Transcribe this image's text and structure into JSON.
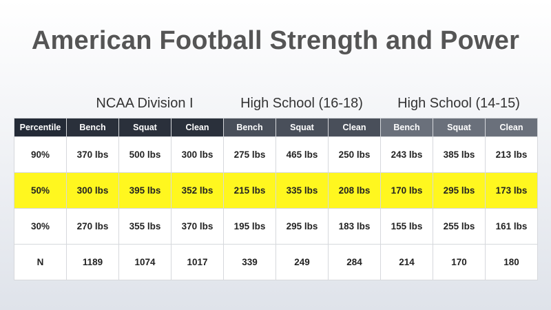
{
  "slide": {
    "title": "American Football Strength and Power"
  },
  "groups": [
    "NCAA Division I",
    "High School (16-18)",
    "High School (14-15)"
  ],
  "table": {
    "headers": [
      "Percentile",
      "Bench",
      "Squat",
      "Clean",
      "Bench",
      "Squat",
      "Clean",
      "Bench",
      "Squat",
      "Clean"
    ],
    "rows": [
      [
        "90%",
        "370 lbs",
        "500 lbs",
        "300 lbs",
        "275 lbs",
        "465 lbs",
        "250 lbs",
        "243 lbs",
        "385 lbs",
        "213 lbs"
      ],
      [
        "50%",
        "300 lbs",
        "395 lbs",
        "352 lbs",
        "215 lbs",
        "335 lbs",
        "208 lbs",
        "170 lbs",
        "295 lbs",
        "173 lbs"
      ],
      [
        "30%",
        "270 lbs",
        "355 lbs",
        "370 lbs",
        "195 lbs",
        "295 lbs",
        "183 lbs",
        "155 lbs",
        "255 lbs",
        "161 lbs"
      ],
      [
        "N",
        "1189",
        "1074",
        "1017",
        "339",
        "249",
        "284",
        "214",
        "170",
        "180"
      ]
    ],
    "highlight_row_color": "#fff71f",
    "header_colors": {
      "percentile": "#232a36",
      "ncaa": "#2a303b",
      "high_school_16_18": "#494f5a",
      "high_school_14_15": "#6a707b"
    }
  }
}
